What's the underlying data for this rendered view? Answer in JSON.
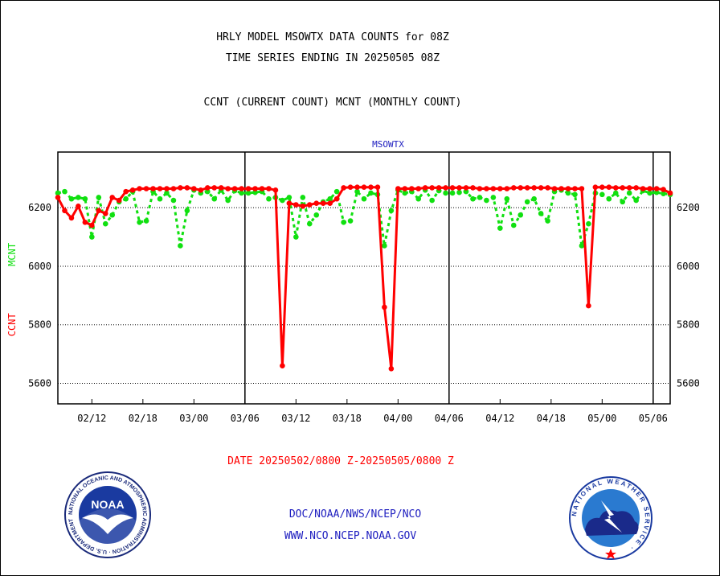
{
  "header": {
    "title_line1": "HRLY MODEL MSOWTX DATA COUNTS for 08Z",
    "title_line2": "TIME SERIES ENDING IN 20250505 08Z",
    "subtitle": "CCNT (CURRENT COUNT) MCNT (MONTHLY COUNT)"
  },
  "footer": {
    "date_range": "DATE 20250502/0800 Z-20250505/0800 Z",
    "link1": "DOC/NOAA/NWS/NCEP/NCO",
    "link2": "WWW.NCO.NCEP.NOAA.GOV"
  },
  "logos": {
    "noaa_text": "NOAA",
    "noaa_ring": "NATIONAL OCEANIC AND ATMOSPHERIC ADMINISTRATION · U.S. DEPARTMENT OF COMMERCE ·",
    "nws_ring": "NATIONAL WEATHER SERVICE ·"
  },
  "chart_data": {
    "type": "line",
    "title": "MSOWTX",
    "ylabel_ccnt": "CCNT",
    "ylabel_mcnt": "MCNT",
    "ylim": [
      5530,
      6390
    ],
    "yticks": [
      5600,
      5800,
      6000,
      6200
    ],
    "gridlines": "dotted horizontal at y ticks",
    "xlim": [
      0,
      90
    ],
    "xticks": [
      {
        "x": 5,
        "label": "02/12"
      },
      {
        "x": 12.5,
        "label": "02/18"
      },
      {
        "x": 20,
        "label": "03/00"
      },
      {
        "x": 27.5,
        "label": "03/06"
      },
      {
        "x": 35,
        "label": "03/12"
      },
      {
        "x": 42.5,
        "label": "03/18"
      },
      {
        "x": 50,
        "label": "04/00"
      },
      {
        "x": 57.5,
        "label": "04/06"
      },
      {
        "x": 65,
        "label": "04/12"
      },
      {
        "x": 72.5,
        "label": "04/18"
      },
      {
        "x": 80,
        "label": "05/00"
      },
      {
        "x": 87.5,
        "label": "05/06"
      }
    ],
    "day_separators": [
      27.5,
      57.5,
      87.5
    ],
    "series": [
      {
        "name": "CCNT",
        "color": "#ff0000",
        "style": "solid",
        "x": [
          0,
          1,
          2,
          3,
          4,
          5,
          6,
          7,
          8,
          9,
          10,
          11,
          12,
          13,
          14,
          15,
          16,
          17,
          18,
          19,
          20,
          21,
          22,
          23,
          24,
          25,
          26,
          27,
          28,
          29,
          30,
          31,
          32,
          33,
          34,
          35,
          36,
          37,
          38,
          39,
          40,
          41,
          42,
          43,
          44,
          45,
          46,
          47,
          48,
          49,
          50,
          51,
          52,
          53,
          54,
          55,
          56,
          57,
          58,
          59,
          60,
          61,
          62,
          63,
          64,
          65,
          66,
          67,
          68,
          69,
          70,
          71,
          72,
          73,
          74,
          75,
          76,
          77,
          78,
          79,
          80,
          81,
          82,
          83,
          84,
          85,
          86,
          87,
          88,
          89,
          90
        ],
        "values": [
          6235,
          6190,
          6165,
          6205,
          6150,
          6140,
          6190,
          6180,
          6235,
          6225,
          6255,
          6260,
          6265,
          6265,
          6265,
          6265,
          6265,
          6265,
          6268,
          6268,
          6265,
          6260,
          6268,
          6268,
          6268,
          6265,
          6265,
          6265,
          6265,
          6265,
          6265,
          6265,
          6260,
          5660,
          6215,
          6210,
          6205,
          6210,
          6215,
          6215,
          6215,
          6230,
          6268,
          6270,
          6270,
          6270,
          6270,
          6270,
          5860,
          5650,
          6265,
          6265,
          6265,
          6265,
          6268,
          6268,
          6268,
          6268,
          6268,
          6268,
          6268,
          6268,
          6265,
          6265,
          6265,
          6265,
          6265,
          6268,
          6268,
          6268,
          6268,
          6268,
          6268,
          6265,
          6265,
          6265,
          6265,
          6265,
          5865,
          6270,
          6270,
          6270,
          6268,
          6268,
          6268,
          6268,
          6265,
          6265,
          6265,
          6262,
          6250
        ]
      },
      {
        "name": "MCNT",
        "color": "#10e010",
        "style": "dotted",
        "x": [
          0,
          1,
          2,
          3,
          4,
          5,
          6,
          7,
          8,
          9,
          10,
          11,
          12,
          13,
          14,
          15,
          16,
          17,
          18,
          19,
          20,
          21,
          22,
          23,
          24,
          25,
          26,
          27,
          28,
          29,
          30,
          31,
          32,
          33,
          34,
          35,
          36,
          37,
          38,
          39,
          40,
          41,
          42,
          43,
          44,
          45,
          46,
          47,
          48,
          49,
          50,
          51,
          52,
          53,
          54,
          55,
          56,
          57,
          58,
          59,
          60,
          61,
          62,
          63,
          64,
          65,
          66,
          67,
          68,
          69,
          70,
          71,
          72,
          73,
          74,
          75,
          76,
          77,
          78,
          79,
          80,
          81,
          82,
          83,
          84,
          85,
          86,
          87,
          88,
          89,
          90
        ],
        "values": [
          6250,
          6255,
          6230,
          6235,
          6230,
          6100,
          6235,
          6145,
          6175,
          6220,
          6230,
          6255,
          6150,
          6155,
          6255,
          6230,
          6250,
          6225,
          6070,
          6190,
          6260,
          6250,
          6255,
          6230,
          6260,
          6225,
          6258,
          6250,
          6250,
          6252,
          6255,
          6230,
          6235,
          6225,
          6235,
          6100,
          6235,
          6145,
          6175,
          6220,
          6230,
          6255,
          6150,
          6155,
          6255,
          6230,
          6250,
          6245,
          6070,
          6190,
          6260,
          6250,
          6255,
          6230,
          6260,
          6225,
          6258,
          6250,
          6250,
          6252,
          6255,
          6230,
          6235,
          6225,
          6235,
          6130,
          6230,
          6140,
          6175,
          6220,
          6230,
          6180,
          6155,
          6255,
          6260,
          6250,
          6245,
          6070,
          6145,
          6250,
          6245,
          6230,
          6250,
          6220,
          6250,
          6225,
          6258,
          6250,
          6252,
          6248,
          6245
        ]
      }
    ]
  }
}
